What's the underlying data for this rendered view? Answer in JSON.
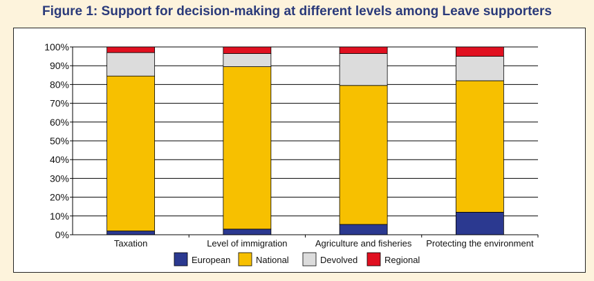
{
  "figure_title": "Figure 1: Support for decision-making at different levels among Leave supporters",
  "colors": {
    "European": "#2b3990",
    "National": "#f7c000",
    "Devolved": "#dcdcdc",
    "Regional": "#e01020",
    "background": "#fdf3dc"
  },
  "chart_data": {
    "type": "bar",
    "stacked": true,
    "title": "Figure 1: Support for decision-making at different levels among Leave supporters",
    "xlabel": "",
    "ylabel": "",
    "ylim": [
      0,
      100
    ],
    "y_ticks": [
      "0%",
      "10%",
      "20%",
      "30%",
      "40%",
      "50%",
      "60%",
      "70%",
      "80%",
      "90%",
      "100%"
    ],
    "grid": true,
    "legend_position": "bottom",
    "categories": [
      "Taxation",
      "Level of immigration",
      "Agriculture and fisheries",
      "Protecting the environment"
    ],
    "series": [
      {
        "name": "European",
        "values": [
          2,
          3,
          5.5,
          12
        ]
      },
      {
        "name": "National",
        "values": [
          82.5,
          86.5,
          74,
          70
        ]
      },
      {
        "name": "Devolved",
        "values": [
          12.5,
          7,
          17,
          13
        ]
      },
      {
        "name": "Regional",
        "values": [
          3,
          3.5,
          3.5,
          5
        ]
      }
    ]
  }
}
